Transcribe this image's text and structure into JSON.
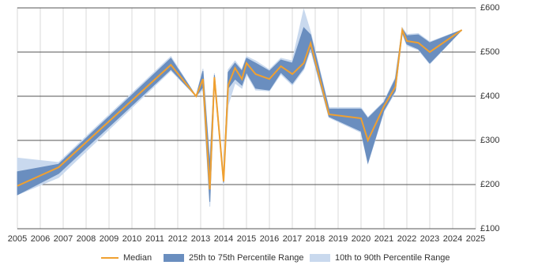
{
  "chart_data": {
    "type": "band-line",
    "x": [
      2005,
      2006.8,
      2011.7,
      2012.8,
      2013.1,
      2013.4,
      2013.6,
      2014.0,
      2014.2,
      2014.5,
      2014.8,
      2015.0,
      2015.4,
      2016.0,
      2016.5,
      2017.0,
      2017.5,
      2017.8,
      2018.6,
      2020.0,
      2020.3,
      2021.0,
      2021.5,
      2021.8,
      2022.0,
      2022.5,
      2023.0,
      2024.4
    ],
    "series": [
      {
        "name": "Median",
        "color": "#f0a030",
        "values": [
          197,
          239,
          471,
          400,
          439,
          189,
          443,
          207,
          425,
          464,
          439,
          475,
          450,
          439,
          468,
          450,
          475,
          520,
          359,
          350,
          300,
          377,
          421,
          550,
          525,
          521,
          500,
          550
        ]
      }
    ],
    "bands": [
      {
        "name": "10th to 90th Percentile Range",
        "color": "#c9d9ee",
        "low": [
          177,
          216,
          458,
          400,
          415,
          150,
          430,
          200,
          380,
          430,
          418,
          450,
          414,
          412,
          450,
          425,
          460,
          505,
          352,
          318,
          248,
          365,
          410,
          542,
          515,
          505,
          473,
          550
        ],
        "high": [
          260,
          250,
          490,
          400,
          462,
          250,
          452,
          215,
          460,
          480,
          460,
          490,
          480,
          460,
          486,
          480,
          596,
          545,
          374,
          374,
          352,
          388,
          442,
          555,
          540,
          542,
          523,
          550
        ]
      },
      {
        "name": "25th to 75th Percentile Range",
        "color": "#6a8ebf",
        "low": [
          177,
          225,
          461,
          400,
          421,
          161,
          435,
          204,
          418,
          439,
          425,
          454,
          418,
          414,
          454,
          429,
          464,
          511,
          354,
          321,
          250,
          368,
          413,
          545,
          518,
          507,
          475,
          550
        ],
        "high": [
          229,
          246,
          486,
          400,
          457,
          243,
          448,
          210,
          454,
          475,
          457,
          486,
          475,
          457,
          482,
          475,
          555,
          539,
          371,
          371,
          350,
          386,
          439,
          552,
          537,
          539,
          521,
          550
        ]
      }
    ],
    "xlim": [
      2005,
      2025
    ],
    "xticks": [
      2005,
      2006,
      2007,
      2008,
      2009,
      2010,
      2011,
      2012,
      2013,
      2014,
      2015,
      2016,
      2017,
      2018,
      2019,
      2020,
      2021,
      2022,
      2023,
      2024,
      2025
    ],
    "ylim": [
      100,
      600
    ],
    "yticks": [
      {
        "value": 100,
        "label": "£100"
      },
      {
        "value": 200,
        "label": "£200"
      },
      {
        "value": 300,
        "label": "£300"
      },
      {
        "value": 400,
        "label": "£400"
      },
      {
        "value": 500,
        "label": "£500"
      },
      {
        "value": 600,
        "label": "£600"
      }
    ],
    "grid": true
  }
}
